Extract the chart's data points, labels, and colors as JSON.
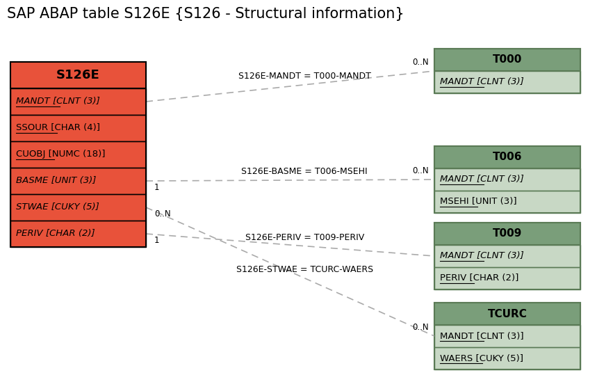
{
  "title": "SAP ABAP table S126E {S126 - Structural information}",
  "title_fontsize": 15,
  "background_color": "#ffffff",
  "main_table": {
    "name": "S126E",
    "header_bg": "#e8523a",
    "header_text_color": "#000000",
    "fields": [
      {
        "text": "MANDT",
        "rest": " [CLNT (3)]",
        "italic": true,
        "underline": true
      },
      {
        "text": "SSOUR",
        "rest": " [CHAR (4)]",
        "italic": false,
        "underline": true
      },
      {
        "text": "CUOBJ",
        "rest": " [NUMC (18)]",
        "italic": false,
        "underline": true
      },
      {
        "text": "BASME",
        "rest": " [UNIT (3)]",
        "italic": true,
        "underline": false
      },
      {
        "text": "STWAE",
        "rest": " [CUKY (5)]",
        "italic": true,
        "underline": false
      },
      {
        "text": "PERIV",
        "rest": " [CHAR (2)]",
        "italic": true,
        "underline": false
      }
    ],
    "field_bg": "#e8523a",
    "field_text_color": "#000000",
    "border_color": "#000000"
  },
  "related_tables": [
    {
      "name": "T000",
      "header_bg": "#7a9e7a",
      "header_text_color": "#000000",
      "fields": [
        {
          "text": "MANDT",
          "rest": " [CLNT (3)]",
          "italic": true,
          "underline": true
        }
      ],
      "field_bg": "#c8d8c5",
      "field_text_color": "#000000",
      "border_color": "#5a7a55"
    },
    {
      "name": "T006",
      "header_bg": "#7a9e7a",
      "header_text_color": "#000000",
      "fields": [
        {
          "text": "MANDT",
          "rest": " [CLNT (3)]",
          "italic": true,
          "underline": true
        },
        {
          "text": "MSEHI",
          "rest": " [UNIT (3)]",
          "italic": false,
          "underline": true
        }
      ],
      "field_bg": "#c8d8c5",
      "field_text_color": "#000000",
      "border_color": "#5a7a55"
    },
    {
      "name": "T009",
      "header_bg": "#7a9e7a",
      "header_text_color": "#000000",
      "fields": [
        {
          "text": "MANDT",
          "rest": " [CLNT (3)]",
          "italic": true,
          "underline": true
        },
        {
          "text": "PERIV",
          "rest": " [CHAR (2)]",
          "italic": false,
          "underline": true
        }
      ],
      "field_bg": "#c8d8c5",
      "field_text_color": "#000000",
      "border_color": "#5a7a55"
    },
    {
      "name": "TCURC",
      "header_bg": "#7a9e7a",
      "header_text_color": "#000000",
      "fields": [
        {
          "text": "MANDT",
          "rest": " [CLNT (3)]",
          "italic": false,
          "underline": true
        },
        {
          "text": "WAERS",
          "rest": " [CUKY (5)]",
          "italic": false,
          "underline": true
        }
      ],
      "field_bg": "#c8d8c5",
      "field_text_color": "#000000",
      "border_color": "#5a7a55"
    }
  ],
  "connections": [
    {
      "label": "S126E-MANDT = T000-MANDT",
      "from_field": 0,
      "to_table": 0,
      "left_label": "",
      "right_label": "0..N"
    },
    {
      "label": "S126E-BASME = T006-MSEHI",
      "from_field": 3,
      "to_table": 1,
      "left_label": "1",
      "right_label": "0..N"
    },
    {
      "label": "S126E-PERIV = T009-PERIV",
      "from_field": 5,
      "to_table": 2,
      "left_label": "1",
      "right_label": ""
    },
    {
      "label": "S126E-STWAE = TCURC-WAERS",
      "from_field": 4,
      "to_table": 3,
      "left_label": "0..N",
      "right_label": "0..N"
    }
  ]
}
